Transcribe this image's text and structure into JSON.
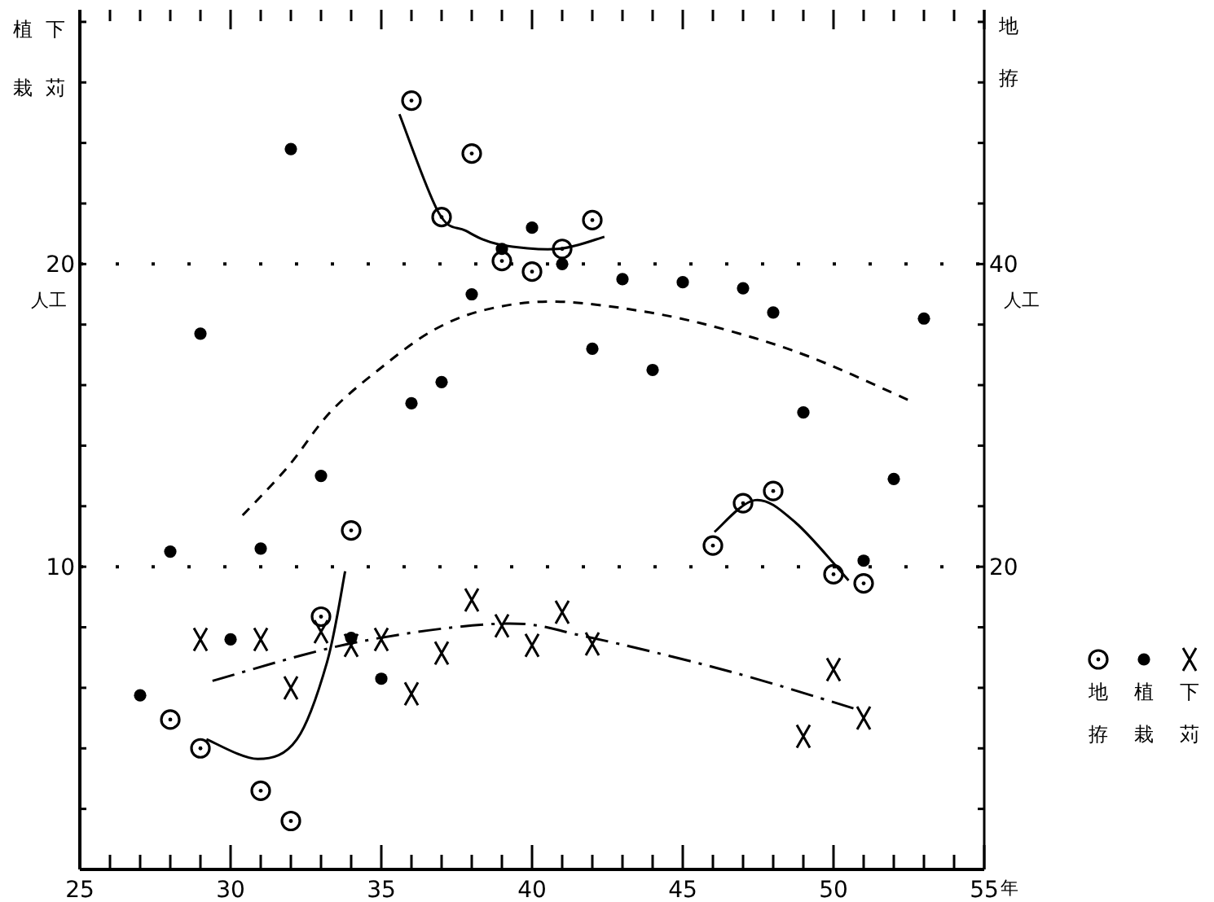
{
  "chart_data": {
    "type": "scatter",
    "xlabel": "年",
    "ylabel": "植栽下苅",
    "y2label": "地拵",
    "xlim": [
      25,
      55
    ],
    "xticks": [
      25,
      {
        "value": 26,
        "label": null
      },
      {
        "value": 27,
        "label": null
      },
      {
        "value": 28,
        "label": null
      },
      {
        "value": 29,
        "label": null
      },
      30,
      {
        "value": 31,
        "label": null
      },
      {
        "value": 32,
        "label": null
      },
      {
        "value": 33,
        "label": null
      },
      {
        "value": 34,
        "label": null
      },
      35,
      {
        "value": 36,
        "label": null
      },
      {
        "value": 37,
        "label": null
      },
      {
        "value": 38,
        "label": null
      },
      {
        "value": 39,
        "label": null
      },
      40,
      {
        "value": 41,
        "label": null
      },
      {
        "value": 42,
        "label": null
      },
      {
        "value": 43,
        "label": null
      },
      {
        "value": 44,
        "label": null
      },
      45,
      {
        "value": 46,
        "label": null
      },
      {
        "value": 47,
        "label": null
      },
      {
        "value": 48,
        "label": null
      },
      {
        "value": 49,
        "label": null
      },
      50,
      {
        "value": 51,
        "label": null
      },
      {
        "value": 52,
        "label": null
      },
      {
        "value": 53,
        "label": null
      },
      {
        "value": 54,
        "label": null
      },
      55
    ],
    "ylim": [
      0,
      28.4
    ],
    "yticks": [
      {
        "value": 2,
        "label": null
      },
      {
        "value": 4,
        "label": null
      },
      {
        "value": 6,
        "label": null
      },
      {
        "value": 8,
        "label": null
      },
      10,
      {
        "value": 12,
        "label": null
      },
      {
        "value": 14,
        "label": null
      },
      {
        "value": 16,
        "label": null
      },
      {
        "value": 18,
        "label": null
      },
      20,
      {
        "value": 22,
        "label": null
      },
      {
        "value": 24,
        "label": null
      },
      {
        "value": 26,
        "label": null
      },
      {
        "value": 28,
        "label": null
      }
    ],
    "y2lim": [
      0,
      56.8
    ],
    "y2ticks": [
      {
        "value": 4,
        "label": null
      },
      {
        "value": 8,
        "label": null
      },
      {
        "value": 12,
        "label": null
      },
      {
        "value": 16,
        "label": null
      },
      20,
      {
        "value": 24,
        "label": null
      },
      {
        "value": 28,
        "label": null
      },
      {
        "value": 32,
        "label": null
      },
      {
        "value": 36,
        "label": null
      },
      40,
      {
        "value": 44,
        "label": null
      },
      {
        "value": 48,
        "label": null
      },
      {
        "value": 52,
        "label": null
      },
      {
        "value": 56,
        "label": null
      }
    ],
    "annotations": [
      "人工",
      "人工"
    ],
    "legend": "right",
    "grid": "y",
    "series": [
      {
        "name": "地拵",
        "color": "#000000",
        "marker": "circle",
        "axis": "y2",
        "x": [
          28,
          29,
          31,
          32,
          33,
          34,
          36,
          37,
          38,
          39,
          40,
          41,
          42,
          46,
          47,
          48,
          50,
          51
        ],
        "values": [
          9.9,
          8.0,
          5.2,
          3.2,
          16.7,
          22.4,
          50.8,
          43.1,
          47.3,
          40.2,
          39.5,
          41.0,
          42.9,
          21.4,
          24.2,
          25.0,
          19.5,
          18.9
        ]
      },
      {
        "name": "植栽",
        "color": "#000000",
        "marker": "dot",
        "x": [
          27,
          28,
          29,
          30,
          31,
          32,
          33,
          34,
          35,
          36,
          37,
          38,
          39,
          40,
          41,
          42,
          43,
          44,
          45,
          47,
          48,
          49,
          51,
          52,
          53
        ],
        "values": [
          5.75,
          10.5,
          17.7,
          7.6,
          10.6,
          23.8,
          13.0,
          7.65,
          6.3,
          15.4,
          16.1,
          19.0,
          20.5,
          21.2,
          20.0,
          17.2,
          19.5,
          16.5,
          19.4,
          19.2,
          18.4,
          15.1,
          10.2,
          12.9,
          18.2
        ]
      },
      {
        "name": "下苅",
        "color": "#000000",
        "marker": "cross",
        "x": [
          29,
          31,
          32,
          33,
          34,
          35,
          36,
          37,
          38,
          39,
          40,
          41,
          42,
          49,
          50,
          51
        ],
        "values": [
          7.6,
          7.6,
          6.0,
          7.85,
          7.4,
          7.6,
          5.8,
          7.15,
          8.9,
          8.05,
          7.4,
          8.5,
          7.45,
          4.4,
          6.6,
          5.0
        ]
      },
      {
        "type": "line",
        "color": "#000000",
        "line_style": "solid",
        "axis": "y2",
        "x": [
          35.6,
          36.9,
          37.8,
          38.9,
          40.85,
          42.4
        ],
        "values": [
          49.9,
          43.4,
          42.2,
          41.3,
          41.0,
          41.8
        ]
      },
      {
        "type": "line",
        "color": "#000000",
        "line_style": "solid",
        "axis": "y2",
        "x": [
          29.2,
          30.9,
          32.2,
          33.2,
          33.8
        ],
        "values": [
          8.6,
          7.3,
          8.6,
          13.7,
          19.7
        ]
      },
      {
        "type": "line",
        "color": "#000000",
        "line_style": "solid",
        "axis": "y2",
        "x": [
          46.05,
          47.4,
          48.75,
          50.5
        ],
        "values": [
          22.3,
          24.4,
          22.9,
          19.1
        ]
      },
      {
        "type": "line",
        "color": "#000000",
        "line_style": "dashed",
        "x": [
          30.4,
          31.9,
          33.3,
          34.9,
          36.7,
          38.5,
          40.8,
          43.9,
          46.6,
          49.3,
          52.5
        ],
        "values": [
          11.7,
          13.3,
          15.1,
          16.5,
          17.8,
          18.5,
          18.76,
          18.4,
          17.78,
          16.9,
          15.5
        ]
      },
      {
        "type": "line",
        "color": "#000000",
        "line_style": "dashdot",
        "x": [
          29.4,
          34.1,
          39,
          41.8,
          46.6,
          50.8
        ],
        "values": [
          6.23,
          7.49,
          8.12,
          7.69,
          6.53,
          5.28
        ]
      }
    ]
  }
}
